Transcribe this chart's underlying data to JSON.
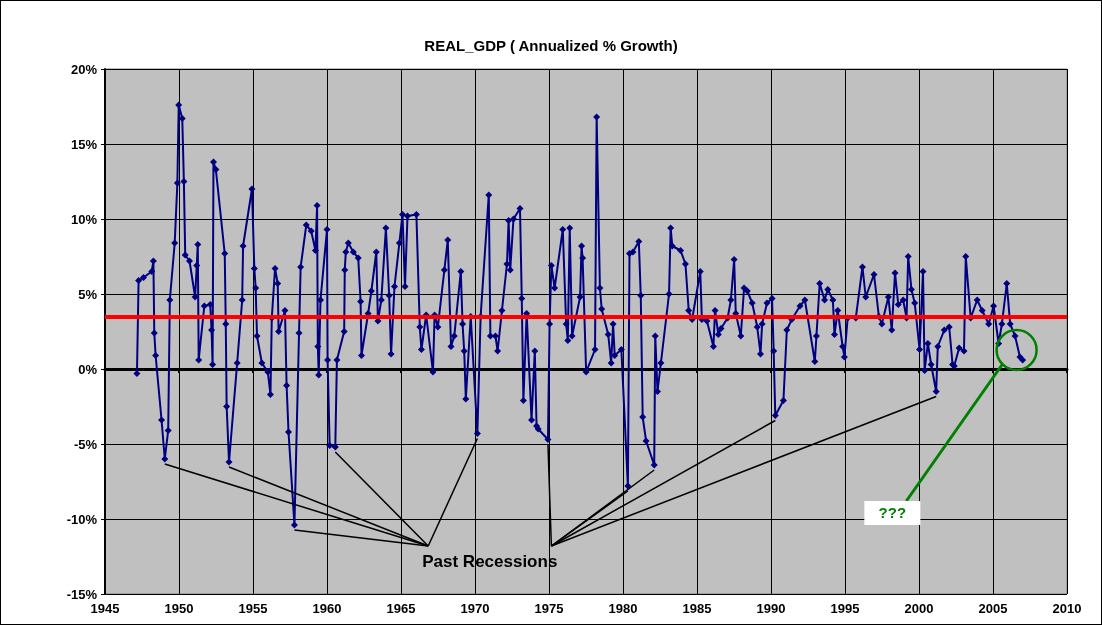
{
  "chart_data": {
    "type": "line",
    "title": "REAL_GDP ( Annualized % Growth)",
    "x": [
      1947.16,
      1947.27,
      1947.6,
      1948.16,
      1948.27,
      1948.33,
      1948.42,
      1948.82,
      1949.04,
      1949.27,
      1949.38,
      1949.71,
      1949.89,
      1949.98,
      1950.22,
      1950.33,
      1950.42,
      1950.71,
      1951.09,
      1951.2,
      1951.27,
      1951.33,
      1951.71,
      1952.11,
      1952.2,
      1952.27,
      1952.33,
      1952.49,
      1953.09,
      1953.16,
      1953.22,
      1953.38,
      1953.93,
      1954.27,
      1954.33,
      1954.93,
      1955.09,
      1955.18,
      1955.27,
      1955.6,
      1956.0,
      1956.18,
      1956.27,
      1956.49,
      1956.67,
      1956.73,
      1957.16,
      1957.27,
      1957.4,
      1957.8,
      1958.11,
      1958.22,
      1958.6,
      1958.93,
      1959.22,
      1959.33,
      1959.38,
      1959.44,
      1959.56,
      1960.0,
      1960.04,
      1960.18,
      1960.56,
      1960.67,
      1961.16,
      1961.2,
      1961.27,
      1961.44,
      1961.78,
      1962.11,
      1962.27,
      1962.33,
      1962.78,
      1963.0,
      1963.33,
      1963.44,
      1963.67,
      1963.98,
      1964.2,
      1964.33,
      1964.56,
      1964.89,
      1965.1,
      1965.27,
      1965.44,
      1966.04,
      1966.27,
      1966.38,
      1966.7,
      1967.16,
      1967.27,
      1967.49,
      1967.93,
      1968.16,
      1968.38,
      1968.6,
      1969.04,
      1969.16,
      1969.27,
      1969.38,
      1969.71,
      1970.16,
      1970.38,
      1970.93,
      1971.04,
      1971.38,
      1971.53,
      1971.82,
      1972.16,
      1972.27,
      1972.38,
      1972.6,
      1973.04,
      1973.16,
      1973.27,
      1973.49,
      1973.82,
      1974.04,
      1974.16,
      1974.27,
      1974.93,
      1975.04,
      1975.16,
      1975.38,
      1975.93,
      1976.16,
      1976.27,
      1976.4,
      1976.56,
      1977.1,
      1977.2,
      1977.27,
      1977.51,
      1978.11,
      1978.22,
      1978.44,
      1978.56,
      1979.0,
      1979.2,
      1979.33,
      1979.44,
      1979.89,
      1980.33,
      1980.44,
      1980.67,
      1981.07,
      1981.2,
      1981.33,
      1981.56,
      1982.11,
      1982.18,
      1982.33,
      1982.56,
      1983.11,
      1983.22,
      1983.33,
      1983.89,
      1984.22,
      1984.44,
      1984.67,
      1985.22,
      1985.33,
      1985.67,
      1986.11,
      1986.22,
      1986.44,
      1986.62,
      1987.07,
      1987.29,
      1987.51,
      1987.62,
      1987.96,
      1988.18,
      1988.4,
      1988.73,
      1989.07,
      1989.29,
      1989.4,
      1989.73,
      1990.07,
      1990.18,
      1990.29,
      1990.84,
      1991.07,
      1991.4,
      1991.96,
      1992.29,
      1992.96,
      1993.07,
      1993.29,
      1993.62,
      1993.84,
      1994.18,
      1994.29,
      1994.51,
      1994.84,
      1994.96,
      1995.18,
      1995.73,
      1996.18,
      1996.4,
      1996.96,
      1997.29,
      1997.49,
      1997.93,
      1998.16,
      1998.38,
      1998.6,
      1998.93,
      1999.16,
      1999.27,
      1999.49,
      1999.71,
      2000.04,
      2000.27,
      2000.38,
      2000.6,
      2000.82,
      2001.16,
      2001.27,
      2001.71,
      2002.04,
      2002.27,
      2002.38,
      2002.71,
      2003.04,
      2003.16,
      2003.49,
      2003.93,
      2004.27,
      2004.71,
      2005.04,
      2005.38,
      2005.6,
      2005.93,
      2006.16,
      2006.49,
      2006.82,
      2007.0
    ],
    "series": [
      {
        "color": "#000080",
        "values": [
          -0.3,
          5.9,
          6.1,
          6.5,
          7.2,
          2.4,
          0.9,
          -3.4,
          -6.0,
          -4.1,
          4.6,
          8.4,
          12.4,
          17.6,
          16.7,
          12.5,
          7.6,
          7.2,
          4.8,
          6.9,
          8.3,
          0.6,
          4.2,
          4.3,
          2.6,
          0.3,
          13.8,
          13.3,
          7.7,
          3.0,
          -2.5,
          -6.2,
          0.4,
          4.6,
          8.2,
          12.0,
          6.7,
          5.4,
          2.2,
          0.4,
          -0.2,
          -1.7,
          3.4,
          6.7,
          5.7,
          2.5,
          3.9,
          -1.1,
          -4.2,
          -10.4,
          2.4,
          6.8,
          9.6,
          9.2,
          7.9,
          10.9,
          1.5,
          -0.4,
          4.6,
          9.3,
          0.6,
          -5.1,
          -5.2,
          0.6,
          2.5,
          6.6,
          7.8,
          8.4,
          7.8,
          7.4,
          4.5,
          0.9,
          3.7,
          5.2,
          7.8,
          3.2,
          4.6,
          9.4,
          4.9,
          1.0,
          5.5,
          8.4,
          10.3,
          5.5,
          10.2,
          10.3,
          2.8,
          1.3,
          3.6,
          -0.2,
          3.6,
          2.8,
          6.6,
          8.6,
          1.5,
          2.2,
          6.5,
          3.0,
          1.2,
          -2.0,
          3.5,
          -4.3,
          3.5,
          11.6,
          2.2,
          2.2,
          1.2,
          3.9,
          7.0,
          9.9,
          6.6,
          10.0,
          10.7,
          4.7,
          -2.1,
          3.7,
          -3.4,
          1.2,
          -3.8,
          -4.0,
          -4.7,
          3.0,
          6.9,
          5.4,
          9.3,
          3.0,
          1.9,
          9.4,
          2.2,
          4.8,
          8.2,
          7.4,
          -0.2,
          1.3,
          16.8,
          5.4,
          4.0,
          2.3,
          0.4,
          3.0,
          0.9,
          1.3,
          -7.8,
          7.7,
          7.8,
          8.5,
          4.9,
          -3.2,
          -4.8,
          -6.4,
          2.2,
          -1.5,
          0.4,
          5.0,
          9.4,
          8.2,
          7.9,
          7.0,
          3.9,
          3.3,
          6.5,
          3.3,
          3.2,
          1.5,
          3.9,
          2.3,
          2.7,
          3.4,
          4.6,
          7.3,
          3.7,
          2.2,
          5.4,
          5.2,
          4.4,
          2.8,
          1.0,
          3.0,
          4.4,
          4.7,
          1.2,
          -3.1,
          -2.1,
          2.6,
          3.3,
          4.2,
          4.6,
          0.5,
          2.2,
          5.7,
          4.6,
          5.3,
          4.6,
          2.3,
          3.9,
          1.5,
          0.8,
          3.4,
          3.4,
          6.8,
          4.8,
          6.3,
          3.5,
          3.0,
          4.8,
          2.6,
          6.4,
          4.3,
          4.6,
          3.4,
          7.5,
          5.3,
          4.4,
          1.3,
          6.5,
          -0.1,
          1.7,
          0.3,
          -1.5,
          1.5,
          2.6,
          2.8,
          0.3,
          0.2,
          1.4,
          1.2,
          7.5,
          3.4,
          4.6,
          3.9,
          3.0,
          4.2,
          1.7,
          3.0,
          5.7,
          3.0,
          2.2,
          0.8,
          0.6
        ]
      }
    ],
    "xlim": [
      1945,
      2010
    ],
    "xticks": [
      1945,
      1950,
      1955,
      1960,
      1965,
      1970,
      1975,
      1980,
      1985,
      1990,
      1995,
      2000,
      2005,
      2010
    ],
    "ylim": [
      -15,
      20
    ],
    "yticks": [
      {
        "value": -15,
        "label": "-15%"
      },
      {
        "value": -10,
        "label": "-10%"
      },
      {
        "value": -5,
        "label": "-5%"
      },
      {
        "value": 0,
        "label": "0%"
      },
      {
        "value": 5,
        "label": "5%"
      },
      {
        "value": 10,
        "label": "10%"
      },
      {
        "value": 15,
        "label": "15%"
      },
      {
        "value": 20,
        "label": "20%"
      }
    ],
    "ref_lines": [
      {
        "axis": "y",
        "value": 3.5,
        "color": "#ff0000"
      }
    ],
    "annotations": [
      {
        "text": "Past Recessions",
        "x": 1957.8,
        "y": -10.4
      },
      "???"
    ],
    "grid": true,
    "legend": false,
    "marker": "diamond",
    "line_style": "solid"
  }
}
